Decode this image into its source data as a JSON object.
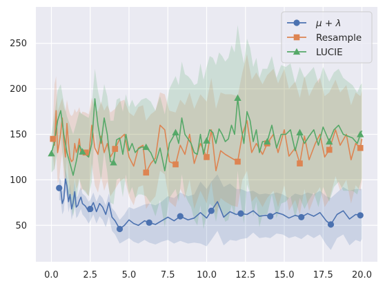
{
  "chart_data": {
    "type": "line",
    "title": "",
    "xlabel": "",
    "ylabel": "",
    "xlim": [
      -1.0,
      21.0
    ],
    "ylim": [
      10,
      290
    ],
    "xticks": [
      0.0,
      2.5,
      5.0,
      7.5,
      10.0,
      12.5,
      15.0,
      17.5,
      20.0
    ],
    "xtick_labels": [
      "0.0",
      "2.5",
      "5.0",
      "7.5",
      "10.0",
      "12.5",
      "15.0",
      "17.5",
      "20.0"
    ],
    "yticks": [
      50,
      100,
      150,
      200,
      250
    ],
    "ytick_labels": [
      "50",
      "100",
      "150",
      "200",
      "250"
    ],
    "grid": true,
    "legend_position": "top-right",
    "series": [
      {
        "name": "$\\mu+\\lambda$",
        "legend_label": "μ + λ",
        "color": "#4c72b0",
        "marker": "circle",
        "marker_x": [
          0.5,
          2.5,
          4.4,
          6.3,
          8.3,
          10.3,
          12.2,
          14.1,
          16.1,
          18.0,
          19.9
        ],
        "x": [
          0.5,
          0.6,
          0.7,
          0.8,
          0.9,
          1.0,
          1.1,
          1.2,
          1.3,
          1.4,
          1.5,
          1.6,
          1.7,
          1.8,
          1.9,
          2.0,
          2.2,
          2.4,
          2.5,
          2.7,
          2.9,
          3.1,
          3.3,
          3.5,
          3.7,
          3.9,
          4.1,
          4.4,
          4.7,
          5.0,
          5.3,
          5.6,
          6.0,
          6.3,
          6.7,
          7.1,
          7.5,
          7.9,
          8.3,
          8.8,
          9.2,
          9.6,
          10.0,
          10.3,
          10.7,
          11.1,
          11.5,
          11.9,
          12.2,
          12.6,
          13.0,
          13.4,
          13.8,
          14.1,
          14.5,
          14.9,
          15.3,
          15.7,
          16.1,
          16.5,
          16.9,
          17.3,
          17.7,
          18.0,
          18.4,
          18.8,
          19.2,
          19.6,
          19.9,
          20.0
        ],
        "values": [
          91,
          90,
          74,
          79,
          101,
          93,
          76,
          84,
          68,
          75,
          87,
          70,
          72,
          77,
          81,
          74,
          71,
          65,
          68,
          75,
          65,
          74,
          70,
          62,
          75,
          59,
          55,
          46,
          50,
          56,
          52,
          50,
          55,
          53,
          51,
          55,
          59,
          55,
          60,
          56,
          58,
          64,
          58,
          66,
          76,
          59,
          65,
          62,
          63,
          62,
          66,
          60,
          61,
          60,
          64,
          62,
          58,
          61,
          59,
          63,
          60,
          64,
          55,
          51,
          62,
          66,
          57,
          62,
          61,
          63
        ],
        "upper": [
          102,
          100,
          87,
          91,
          112,
          104,
          88,
          95,
          80,
          86,
          98,
          81,
          82,
          88,
          92,
          85,
          82,
          76,
          78,
          86,
          76,
          84,
          80,
          72,
          85,
          69,
          65,
          56,
          62,
          70,
          68,
          70,
          73,
          74,
          72,
          76,
          82,
          80,
          86,
          82,
          84,
          98,
          90,
          98,
          106,
          92,
          96,
          90,
          90,
          87,
          88,
          84,
          85,
          84,
          86,
          84,
          80,
          85,
          83,
          86,
          84,
          88,
          82,
          80,
          86,
          92,
          88,
          90,
          90,
          90
        ],
        "lower": [
          78,
          77,
          62,
          66,
          88,
          81,
          64,
          72,
          56,
          63,
          74,
          58,
          60,
          64,
          68,
          62,
          58,
          52,
          55,
          62,
          52,
          60,
          56,
          48,
          60,
          44,
          40,
          30,
          33,
          36,
          32,
          30,
          34,
          31,
          29,
          32,
          34,
          30,
          33,
          30,
          31,
          30,
          27,
          34,
          44,
          28,
          34,
          33,
          35,
          36,
          42,
          36,
          37,
          36,
          41,
          40,
          36,
          38,
          35,
          40,
          36,
          40,
          29,
          23,
          36,
          40,
          28,
          34,
          32,
          35
        ]
      },
      {
        "name": "Resample",
        "legend_label": "Resample",
        "color": "#dd8452",
        "marker": "square",
        "marker_x": [
          0.1,
          2.2,
          4.1,
          6.1,
          8.0,
          10.0,
          12.0,
          13.9,
          16.0,
          17.9,
          19.9
        ],
        "x": [
          0.1,
          0.2,
          0.3,
          0.4,
          0.5,
          0.6,
          0.7,
          0.8,
          0.9,
          1.0,
          1.1,
          1.2,
          1.3,
          1.4,
          1.5,
          1.6,
          1.7,
          1.8,
          1.9,
          2.0,
          2.2,
          2.4,
          2.6,
          2.8,
          3.0,
          3.2,
          3.4,
          3.6,
          3.8,
          4.1,
          4.4,
          4.7,
          5.0,
          5.3,
          5.6,
          5.9,
          6.1,
          6.4,
          6.7,
          7.0,
          7.3,
          7.6,
          8.0,
          8.3,
          8.6,
          8.9,
          9.2,
          9.6,
          10.0,
          10.3,
          10.6,
          10.9,
          11.2,
          11.6,
          12.0,
          12.3,
          12.6,
          12.9,
          13.2,
          13.6,
          13.9,
          14.3,
          14.6,
          15.0,
          15.3,
          15.7,
          16.0,
          16.3,
          16.6,
          17.0,
          17.3,
          17.6,
          17.9,
          18.3,
          18.6,
          19.0,
          19.3,
          19.6,
          19.9,
          20.0
        ],
        "values": [
          145,
          138,
          176,
          130,
          140,
          152,
          168,
          142,
          125,
          162,
          140,
          124,
          120,
          122,
          140,
          130,
          135,
          145,
          128,
          132,
          130,
          125,
          160,
          135,
          128,
          148,
          130,
          140,
          125,
          134,
          145,
          150,
          125,
          115,
          135,
          138,
          108,
          118,
          124,
          160,
          155,
          120,
          117,
          138,
          128,
          150,
          118,
          140,
          125,
          155,
          110,
          132,
          128,
          124,
          120,
          150,
          165,
          130,
          140,
          128,
          140,
          150,
          130,
          155,
          126,
          135,
          118,
          148,
          122,
          140,
          150,
          125,
          133,
          155,
          138,
          150,
          122,
          140,
          135,
          145
        ],
        "upper": [
          165,
          205,
          214,
          175,
          180,
          185,
          190,
          180,
          175,
          188,
          178,
          172,
          170,
          172,
          178,
          174,
          176,
          180,
          172,
          175,
          174,
          172,
          190,
          178,
          175,
          186,
          176,
          182,
          174,
          178,
          186,
          188,
          174,
          170,
          180,
          182,
          165,
          172,
          176,
          196,
          194,
          176,
          174,
          188,
          182,
          196,
          178,
          194,
          186,
          212,
          178,
          196,
          194,
          194,
          192,
          218,
          238,
          210,
          218,
          205,
          215,
          222,
          206,
          222,
          200,
          208,
          190,
          214,
          192,
          206,
          212,
          192,
          196,
          210,
          196,
          204,
          182,
          196,
          192,
          198
        ],
        "lower": [
          125,
          110,
          138,
          96,
          100,
          118,
          130,
          104,
          92,
          126,
          102,
          88,
          82,
          84,
          102,
          90,
          94,
          102,
          88,
          90,
          88,
          82,
          118,
          94,
          86,
          104,
          88,
          98,
          82,
          90,
          98,
          102,
          82,
          72,
          92,
          94,
          68,
          76,
          82,
          110,
          106,
          76,
          70,
          90,
          80,
          100,
          68,
          88,
          74,
          98,
          62,
          80,
          76,
          72,
          70,
          100,
          110,
          76,
          82,
          70,
          80,
          88,
          70,
          94,
          66,
          78,
          62,
          90,
          66,
          84,
          92,
          70,
          78,
          104,
          88,
          100,
          74,
          94,
          88,
          98
        ]
      },
      {
        "name": "LUCIE",
        "legend_label": "LUCIE",
        "color": "#55a868",
        "marker": "triangle",
        "marker_x": [
          0.0,
          2.0,
          4.0,
          6.1,
          8.0,
          10.0,
          12.0,
          13.9,
          16.0,
          17.9,
          19.9
        ],
        "x": [
          0.0,
          0.2,
          0.4,
          0.6,
          0.8,
          1.0,
          1.2,
          1.4,
          1.6,
          1.8,
          2.0,
          2.2,
          2.4,
          2.6,
          2.8,
          3.0,
          3.2,
          3.4,
          3.6,
          3.8,
          4.0,
          4.2,
          4.4,
          4.6,
          4.8,
          5.0,
          5.2,
          5.4,
          5.6,
          5.8,
          6.1,
          6.4,
          6.7,
          7.0,
          7.3,
          7.6,
          8.0,
          8.2,
          8.4,
          8.6,
          8.8,
          9.0,
          9.2,
          9.4,
          9.6,
          9.8,
          10.0,
          10.2,
          10.4,
          10.6,
          10.8,
          11.0,
          11.2,
          11.4,
          11.6,
          11.8,
          12.0,
          12.2,
          12.4,
          12.6,
          12.8,
          13.0,
          13.2,
          13.4,
          13.6,
          13.9,
          14.2,
          14.5,
          14.8,
          15.1,
          15.4,
          15.7,
          16.0,
          16.3,
          16.6,
          16.9,
          17.2,
          17.5,
          17.9,
          18.2,
          18.5,
          18.8,
          19.1,
          19.4,
          19.7,
          19.9,
          20.0
        ],
        "values": [
          129,
          142,
          165,
          176,
          150,
          130,
          118,
          105,
          120,
          138,
          131,
          128,
          125,
          140,
          189,
          160,
          140,
          168,
          150,
          120,
          119,
          144,
          146,
          128,
          150,
          132,
          140,
          130,
          134,
          136,
          136,
          130,
          118,
          135,
          110,
          140,
          152,
          140,
          168,
          150,
          145,
          140,
          130,
          128,
          150,
          128,
          143,
          155,
          152,
          140,
          156,
          150,
          142,
          145,
          160,
          150,
          190,
          160,
          140,
          175,
          165,
          142,
          155,
          130,
          142,
          142,
          160,
          135,
          150,
          150,
          155,
          132,
          152,
          140,
          148,
          155,
          138,
          158,
          142,
          155,
          160,
          150,
          148,
          146,
          140,
          150,
          154
        ],
        "upper": [
          150,
          172,
          198,
          205,
          185,
          170,
          160,
          150,
          162,
          175,
          172,
          170,
          168,
          182,
          222,
          198,
          182,
          205,
          192,
          165,
          165,
          188,
          190,
          175,
          194,
          180,
          188,
          180,
          184,
          188,
          190,
          186,
          176,
          192,
          172,
          200,
          214,
          204,
          230,
          216,
          214,
          210,
          204,
          206,
          228,
          210,
          224,
          236,
          234,
          226,
          240,
          236,
          230,
          234,
          248,
          240,
          270,
          245,
          228,
          255,
          245,
          224,
          234,
          212,
          222,
          222,
          236,
          212,
          226,
          224,
          228,
          206,
          224,
          212,
          218,
          224,
          206,
          224,
          208,
          218,
          222,
          212,
          208,
          204,
          196,
          204,
          206
        ],
        "lower": [
          108,
          112,
          132,
          147,
          115,
          90,
          76,
          60,
          78,
          101,
          90,
          86,
          82,
          98,
          156,
          122,
          98,
          131,
          108,
          75,
          73,
          100,
          102,
          81,
          106,
          84,
          92,
          80,
          84,
          84,
          82,
          74,
          60,
          78,
          48,
          80,
          90,
          76,
          106,
          84,
          76,
          70,
          56,
          50,
          72,
          46,
          62,
          74,
          70,
          54,
          72,
          64,
          54,
          56,
          72,
          60,
          110,
          75,
          52,
          95,
          85,
          60,
          76,
          48,
          62,
          62,
          84,
          58,
          74,
          76,
          82,
          58,
          80,
          68,
          78,
          86,
          70,
          92,
          76,
          92,
          98,
          88,
          88,
          88,
          84,
          96,
          102
        ]
      }
    ]
  }
}
